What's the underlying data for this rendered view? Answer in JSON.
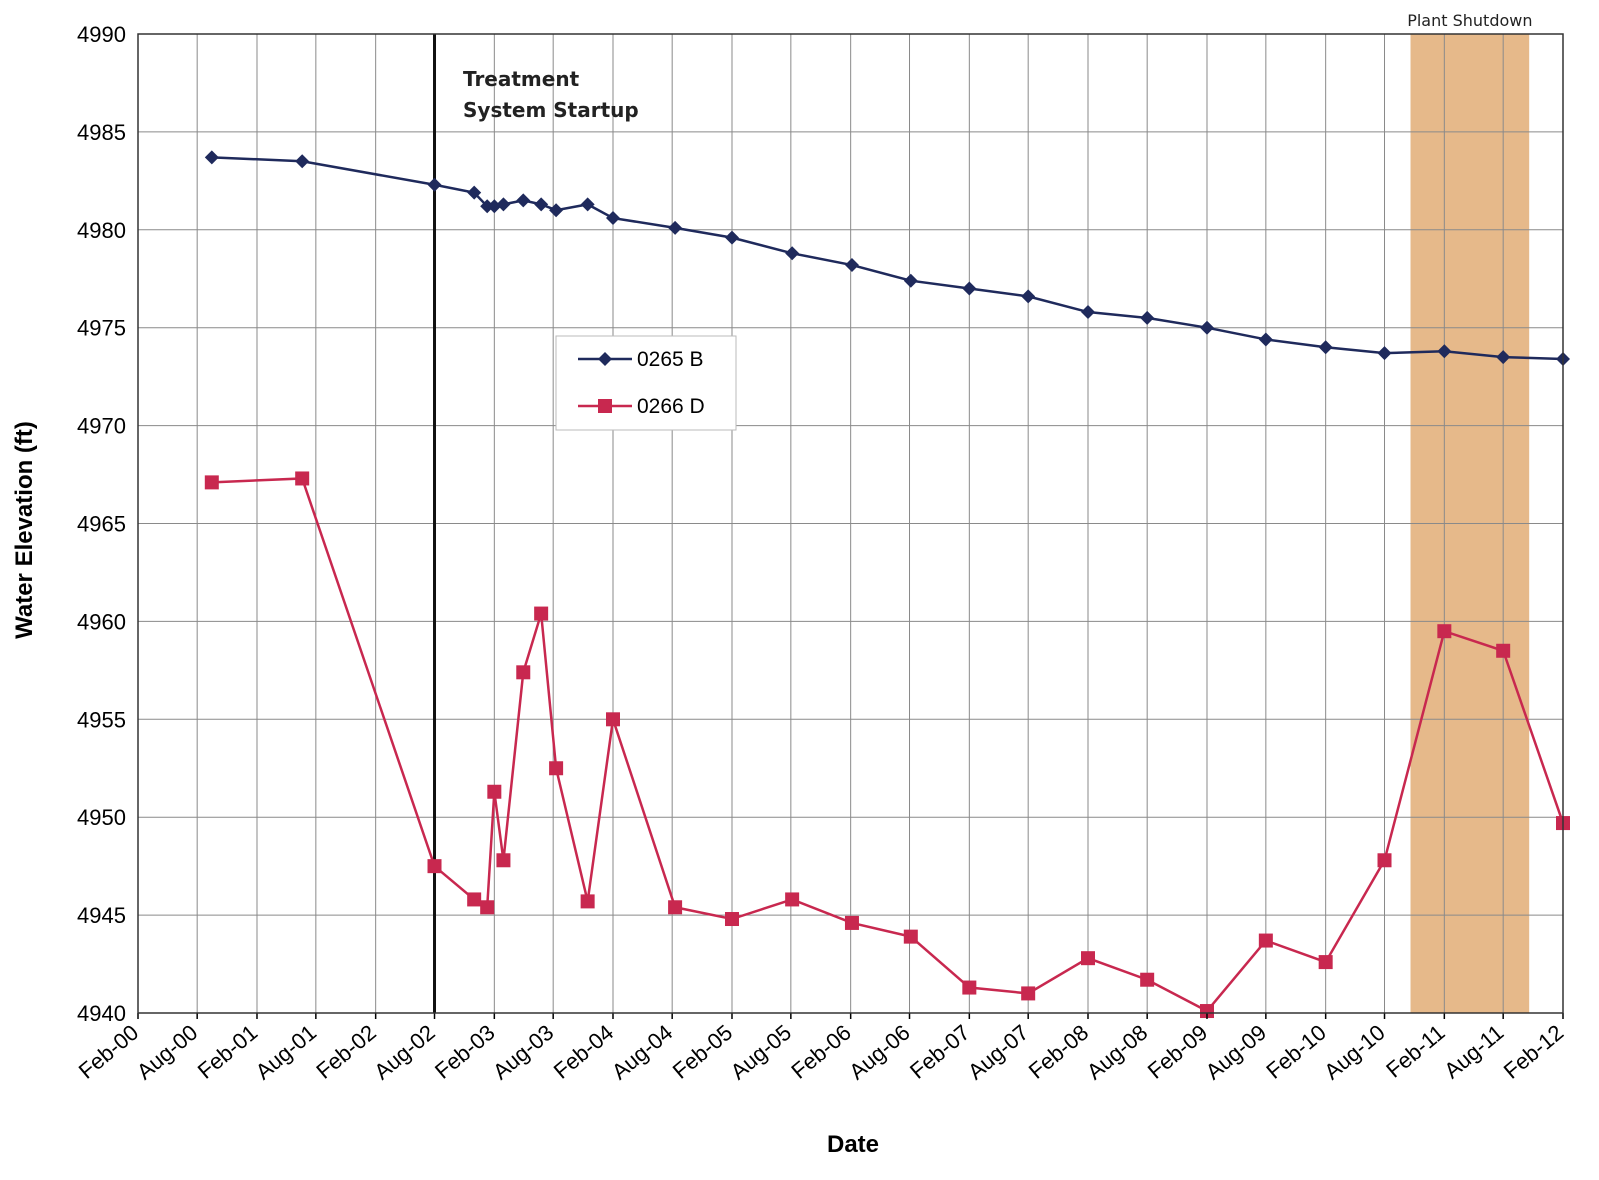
{
  "chart_data": {
    "type": "line",
    "title": "",
    "xlabel": "Date",
    "ylabel": "Water Elevation (ft)",
    "ylim": [
      4940,
      4990
    ],
    "yticks": [
      4940,
      4945,
      4950,
      4955,
      4960,
      4965,
      4970,
      4975,
      4980,
      4985,
      4990
    ],
    "xlim": [
      "2000-02",
      "2012-02"
    ],
    "xtick_labels": [
      "Feb-00",
      "Aug-00",
      "Feb-01",
      "Aug-01",
      "Feb-02",
      "Aug-02",
      "Feb-03",
      "Aug-03",
      "Feb-04",
      "Aug-04",
      "Feb-05",
      "Aug-05",
      "Feb-06",
      "Aug-06",
      "Feb-07",
      "Aug-07",
      "Feb-08",
      "Aug-08",
      "Feb-09",
      "Aug-09",
      "Feb-10",
      "Aug-10",
      "Feb-11",
      "Aug-11",
      "Feb-12"
    ],
    "grid": true,
    "legend_position": "upper-center",
    "series": [
      {
        "name": "0265 B",
        "color": "#1f2a5c",
        "marker": "diamond",
        "points": [
          [
            "2000-09-15",
            4983.7
          ],
          [
            "2001-06-20",
            4983.5
          ],
          [
            "2002-08-01",
            4982.3
          ],
          [
            "2002-12-01",
            4981.9
          ],
          [
            "2003-01-10",
            4981.2
          ],
          [
            "2003-02-01",
            4981.2
          ],
          [
            "2003-03-01",
            4981.3
          ],
          [
            "2003-05-01",
            4981.5
          ],
          [
            "2003-06-25",
            4981.3
          ],
          [
            "2003-08-10",
            4981.0
          ],
          [
            "2003-11-15",
            4981.3
          ],
          [
            "2004-02-01",
            4980.6
          ],
          [
            "2004-08-10",
            4980.1
          ],
          [
            "2005-02-01",
            4979.6
          ],
          [
            "2005-08-05",
            4978.8
          ],
          [
            "2006-02-05",
            4978.2
          ],
          [
            "2006-08-05",
            4977.4
          ],
          [
            "2007-02-01",
            4977.0
          ],
          [
            "2007-08-01",
            4976.6
          ],
          [
            "2008-02-01",
            4975.8
          ],
          [
            "2008-08-01",
            4975.5
          ],
          [
            "2009-02-01",
            4975.0
          ],
          [
            "2009-08-01",
            4974.4
          ],
          [
            "2010-02-01",
            4974.0
          ],
          [
            "2010-08-01",
            4973.7
          ],
          [
            "2011-02-01",
            4973.8
          ],
          [
            "2011-08-01",
            4973.5
          ],
          [
            "2012-02-01",
            4973.4
          ]
        ]
      },
      {
        "name": "0266 D",
        "color": "#c8284f",
        "marker": "square",
        "points": [
          [
            "2000-09-15",
            4967.1
          ],
          [
            "2001-06-20",
            4967.3
          ],
          [
            "2002-08-01",
            4947.5
          ],
          [
            "2002-12-01",
            4945.8
          ],
          [
            "2003-01-10",
            4945.4
          ],
          [
            "2003-02-01",
            4951.3
          ],
          [
            "2003-03-01",
            4947.8
          ],
          [
            "2003-05-01",
            4957.4
          ],
          [
            "2003-06-25",
            4960.4
          ],
          [
            "2003-08-10",
            4952.5
          ],
          [
            "2003-11-15",
            4945.7
          ],
          [
            "2004-02-01",
            4955.0
          ],
          [
            "2004-08-10",
            4945.4
          ],
          [
            "2005-02-01",
            4944.8
          ],
          [
            "2005-08-05",
            4945.8
          ],
          [
            "2006-02-05",
            4944.6
          ],
          [
            "2006-08-05",
            4943.9
          ],
          [
            "2007-02-01",
            4941.3
          ],
          [
            "2007-08-01",
            4941.0
          ],
          [
            "2008-02-01",
            4942.8
          ],
          [
            "2008-08-01",
            4941.7
          ],
          [
            "2009-02-01",
            4940.1
          ],
          [
            "2009-08-01",
            4943.7
          ],
          [
            "2010-02-01",
            4942.6
          ],
          [
            "2010-08-01",
            4947.8
          ],
          [
            "2011-02-01",
            4959.5
          ],
          [
            "2011-08-01",
            4958.5
          ],
          [
            "2012-02-01",
            4949.7
          ]
        ]
      }
    ],
    "annotations": [
      {
        "text": "Treatment System Startup",
        "lines": [
          "Treatment",
          "System Startup"
        ],
        "date": "2002-08-01",
        "style": "vertical-line"
      },
      {
        "text": "Plant Shutdown",
        "date_range": [
          "2010-10-20",
          "2011-10-20"
        ],
        "style": "shaded-band",
        "color": "#e6b98a"
      }
    ]
  }
}
